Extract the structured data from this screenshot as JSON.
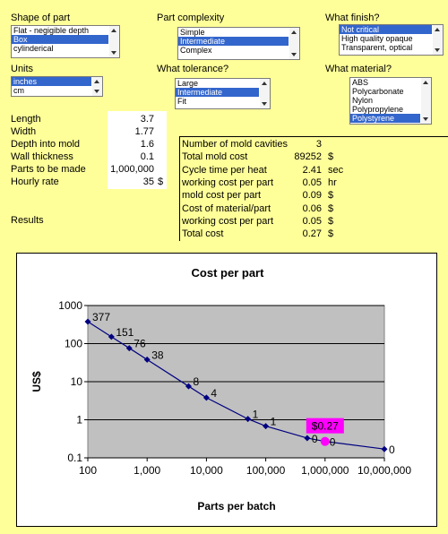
{
  "controls": [
    {
      "label": "Shape of part",
      "items": [
        "Flat - negigible depth",
        "Box",
        "cylinderical"
      ],
      "selected": 1
    },
    {
      "label": "Part complexity",
      "items": [
        "Simple",
        "Intermediate",
        "Complex"
      ],
      "selected": 1
    },
    {
      "label": "What finish?",
      "items": [
        "Not critical",
        "High quality opaque",
        "Transparent, optical"
      ],
      "selected": 0
    },
    {
      "label": "Units",
      "items": [
        "inches",
        "cm"
      ],
      "selected": 0
    },
    {
      "label": "What tolerance?",
      "items": [
        "Large",
        "Intermediate",
        "Fit"
      ],
      "selected": 1
    },
    {
      "label": "What material?",
      "items": [
        "ABS",
        "Polycarbonate",
        "Nylon",
        "Polypropylene",
        "Polystyrene"
      ],
      "selected": 4
    }
  ],
  "inputs": [
    {
      "label": "Length",
      "value": "3.7"
    },
    {
      "label": "Width",
      "value": "1.77"
    },
    {
      "label": "Depth into mold",
      "value": "1.6"
    },
    {
      "label": "Wall thickness",
      "value": "0.1"
    },
    {
      "label": "Parts to be made",
      "value": "1,000,000"
    },
    {
      "label": "Hourly rate",
      "value": "35",
      "unit": "$"
    }
  ],
  "results": {
    "label": "Results",
    "rows": [
      {
        "label": "Number of mold cavities",
        "value": "3"
      },
      {
        "label": "Total mold cost",
        "value": "89252",
        "unit": "$"
      },
      {
        "label": "Cycle time per heat",
        "value": "2.41",
        "unit": "sec"
      },
      {
        "label": "working cost per part",
        "value": "0.05",
        "unit": "hr"
      },
      {
        "label": "mold cost per part",
        "value": "0.09",
        "unit": "$"
      },
      {
        "label": "Cost of material/part",
        "value": "0.06",
        "unit": "$"
      },
      {
        "label": "working cost per part",
        "value": "0.05",
        "unit": "$"
      },
      {
        "label": "Total cost",
        "value": "0.27",
        "unit": "$"
      }
    ]
  },
  "chart_data": {
    "type": "line",
    "title": "Cost per part",
    "x_label": "Parts per batch",
    "y_label": "US$",
    "x": [
      100,
      250,
      500,
      1000,
      5000,
      10000,
      50000,
      100000,
      500000,
      1000000,
      10000000
    ],
    "series": [
      {
        "color": "#000080",
        "values": [
          377,
          151,
          76,
          38,
          7.6,
          3.8,
          1.05,
          0.68,
          0.33,
          0.27,
          0.17
        ],
        "value_labels": [
          "377",
          "151",
          "76",
          "38",
          "8",
          "4",
          "1",
          "1",
          "0",
          "0",
          "0"
        ]
      }
    ],
    "xlim": [
      100,
      10000000
    ],
    "ylim": [
      0.1,
      1000
    ],
    "log_x": true,
    "log_y": true,
    "grid": true,
    "xticks": [
      100,
      {
        "value": 1000,
        "label": "1,000"
      },
      {
        "value": 10000,
        "label": "10,000"
      },
      {
        "value": 100000,
        "label": "100,000"
      },
      {
        "value": 1000000,
        "label": "1,000,000"
      },
      {
        "value": 10000000,
        "label": "10,000,000"
      }
    ],
    "yticks": [
      0.1,
      1,
      10,
      100,
      1000
    ],
    "annotation": {
      "x": 1000000,
      "value": 0.27,
      "label": "$0.27",
      "color": "#ff00ff"
    }
  }
}
